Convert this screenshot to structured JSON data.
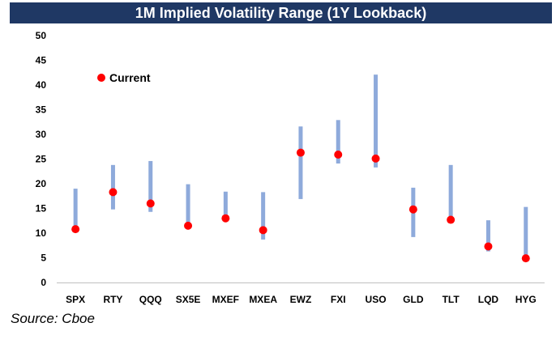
{
  "chart_data": {
    "type": "scatter",
    "title": "1M Implied Volatility Range (1Y Lookback)",
    "categories": [
      "SPX",
      "RTY",
      "QQQ",
      "SX5E",
      "MXEF",
      "MXEA",
      "EWZ",
      "FXI",
      "USO",
      "GLD",
      "TLT",
      "LQD",
      "HYG"
    ],
    "ranges": [
      [
        11.0,
        19.0
      ],
      [
        14.8,
        23.8
      ],
      [
        14.3,
        24.6
      ],
      [
        11.0,
        19.9
      ],
      [
        12.6,
        18.4
      ],
      [
        8.7,
        18.3
      ],
      [
        16.9,
        31.6
      ],
      [
        24.1,
        32.9
      ],
      [
        23.3,
        42.1
      ],
      [
        9.2,
        19.2
      ],
      [
        12.7,
        23.8
      ],
      [
        6.3,
        12.6
      ],
      [
        4.3,
        15.3
      ]
    ],
    "series": [
      {
        "name": "Current",
        "values": [
          10.8,
          18.3,
          16.0,
          11.5,
          13.0,
          10.6,
          26.3,
          25.9,
          25.1,
          14.8,
          12.7,
          7.3,
          4.9
        ]
      }
    ],
    "ylim": [
      0,
      50
    ],
    "yticks": [
      "0",
      "5",
      "10",
      "15",
      "20",
      "25",
      "30",
      "35",
      "40",
      "45",
      "50"
    ],
    "grid": false,
    "legend_position": "top-left",
    "colors": {
      "range": "#8eaadb",
      "current": "#ff0000",
      "title_bg": "#1f3864",
      "axis": "#bfbfbf"
    }
  },
  "source": "Source: Cboe"
}
